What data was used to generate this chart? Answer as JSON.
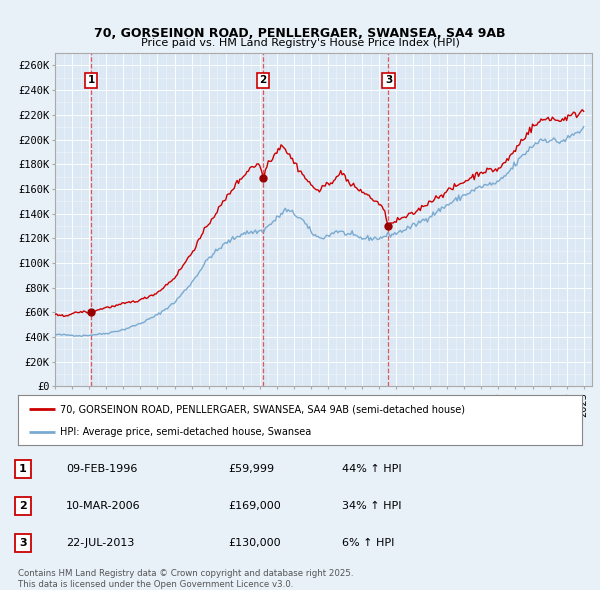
{
  "title": "70, GORSEINON ROAD, PENLLERGAER, SWANSEA, SA4 9AB",
  "subtitle": "Price paid vs. HM Land Registry's House Price Index (HPI)",
  "ylim": [
    0,
    270000
  ],
  "yticks": [
    0,
    20000,
    40000,
    60000,
    80000,
    100000,
    120000,
    140000,
    160000,
    180000,
    200000,
    220000,
    240000,
    260000
  ],
  "ytick_labels": [
    "£0",
    "£20K",
    "£40K",
    "£60K",
    "£80K",
    "£100K",
    "£120K",
    "£140K",
    "£160K",
    "£180K",
    "£200K",
    "£220K",
    "£240K",
    "£260K"
  ],
  "sale_prices": [
    59999,
    169000,
    130000
  ],
  "sale_labels": [
    "1",
    "2",
    "3"
  ],
  "sale_pct_hpi": [
    "44% ↑ HPI",
    "34% ↑ HPI",
    "6% ↑ HPI"
  ],
  "sale_dates_str": [
    "09-FEB-1996",
    "10-MAR-2006",
    "22-JUL-2013"
  ],
  "sale_prices_str": [
    "£59,999",
    "£169,000",
    "£130,000"
  ],
  "sale_year_nums": [
    1996.11,
    2006.19,
    2013.55
  ],
  "legend_entry1": "70, GORSEINON ROAD, PENLLERGAER, SWANSEA, SA4 9AB (semi-detached house)",
  "legend_entry2": "HPI: Average price, semi-detached house, Swansea",
  "footer": "Contains HM Land Registry data © Crown copyright and database right 2025.\nThis data is licensed under the Open Government Licence v3.0.",
  "line_color_property": "#cc0000",
  "line_color_hpi": "#7aaad0",
  "grid_color": "#c8d8e8",
  "bg_color": "#e8f0f8",
  "plot_bg": "#dce8f4",
  "marker_color": "#990000"
}
